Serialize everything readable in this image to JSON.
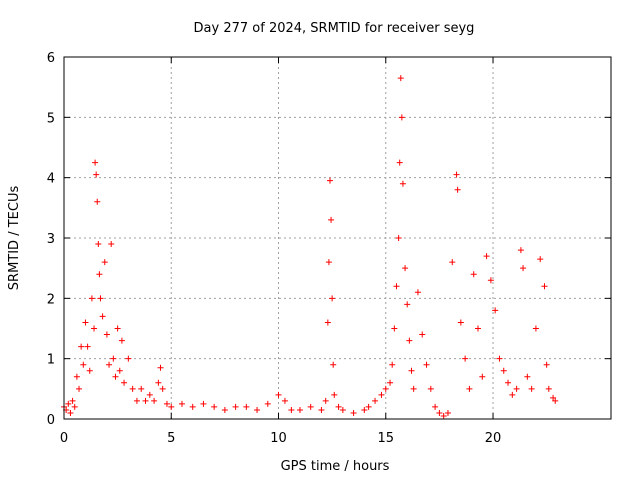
{
  "chart_data": {
    "type": "scatter",
    "title": "Day 277 of 2024, SRMTID for receiver seyg",
    "xlabel": "GPS time / hours",
    "ylabel": "SRMTID / TECUs",
    "xlim": [
      0,
      25.5
    ],
    "ylim": [
      0,
      6
    ],
    "xticks": [
      0,
      5,
      10,
      15,
      20
    ],
    "yticks": [
      0,
      1,
      2,
      3,
      4,
      5,
      6
    ],
    "grid": true,
    "marker": "+",
    "color": "#ff0000",
    "series": [
      {
        "name": "SRMTID",
        "points": [
          [
            0.0,
            0.2
          ],
          [
            0.1,
            0.15
          ],
          [
            0.2,
            0.25
          ],
          [
            0.3,
            0.1
          ],
          [
            0.4,
            0.3
          ],
          [
            0.5,
            0.2
          ],
          [
            0.6,
            0.7
          ],
          [
            0.7,
            0.5
          ],
          [
            0.8,
            1.2
          ],
          [
            0.9,
            0.9
          ],
          [
            1.0,
            1.6
          ],
          [
            1.1,
            1.2
          ],
          [
            1.2,
            0.8
          ],
          [
            1.3,
            2.0
          ],
          [
            1.4,
            1.5
          ],
          [
            1.45,
            4.25
          ],
          [
            1.5,
            4.05
          ],
          [
            1.55,
            3.6
          ],
          [
            1.6,
            2.9
          ],
          [
            1.65,
            2.4
          ],
          [
            1.7,
            2.0
          ],
          [
            1.8,
            1.7
          ],
          [
            1.9,
            2.6
          ],
          [
            2.0,
            1.4
          ],
          [
            2.1,
            0.9
          ],
          [
            2.2,
            2.9
          ],
          [
            2.3,
            1.0
          ],
          [
            2.4,
            0.7
          ],
          [
            2.5,
            1.5
          ],
          [
            2.6,
            0.8
          ],
          [
            2.7,
            1.3
          ],
          [
            2.8,
            0.6
          ],
          [
            3.0,
            1.0
          ],
          [
            3.2,
            0.5
          ],
          [
            3.4,
            0.3
          ],
          [
            3.6,
            0.5
          ],
          [
            3.8,
            0.3
          ],
          [
            4.0,
            0.4
          ],
          [
            4.2,
            0.3
          ],
          [
            4.4,
            0.6
          ],
          [
            4.5,
            0.85
          ],
          [
            4.6,
            0.5
          ],
          [
            4.8,
            0.25
          ],
          [
            5.0,
            0.2
          ],
          [
            5.5,
            0.25
          ],
          [
            6.0,
            0.2
          ],
          [
            6.5,
            0.25
          ],
          [
            7.0,
            0.2
          ],
          [
            7.5,
            0.15
          ],
          [
            8.0,
            0.2
          ],
          [
            8.5,
            0.2
          ],
          [
            9.0,
            0.15
          ],
          [
            9.5,
            0.25
          ],
          [
            10.0,
            0.4
          ],
          [
            10.3,
            0.3
          ],
          [
            10.6,
            0.15
          ],
          [
            11.0,
            0.15
          ],
          [
            11.5,
            0.2
          ],
          [
            12.0,
            0.15
          ],
          [
            12.2,
            0.3
          ],
          [
            12.3,
            1.6
          ],
          [
            12.35,
            2.6
          ],
          [
            12.4,
            3.95
          ],
          [
            12.45,
            3.3
          ],
          [
            12.5,
            2.0
          ],
          [
            12.55,
            0.9
          ],
          [
            12.6,
            0.4
          ],
          [
            12.8,
            0.2
          ],
          [
            13.0,
            0.15
          ],
          [
            13.5,
            0.1
          ],
          [
            14.0,
            0.15
          ],
          [
            14.2,
            0.2
          ],
          [
            14.5,
            0.3
          ],
          [
            14.8,
            0.4
          ],
          [
            15.0,
            0.5
          ],
          [
            15.2,
            0.6
          ],
          [
            15.3,
            0.9
          ],
          [
            15.4,
            1.5
          ],
          [
            15.5,
            2.2
          ],
          [
            15.6,
            3.0
          ],
          [
            15.65,
            4.25
          ],
          [
            15.7,
            5.65
          ],
          [
            15.75,
            5.0
          ],
          [
            15.8,
            3.9
          ],
          [
            15.9,
            2.5
          ],
          [
            16.0,
            1.9
          ],
          [
            16.1,
            1.3
          ],
          [
            16.2,
            0.8
          ],
          [
            16.3,
            0.5
          ],
          [
            16.5,
            2.1
          ],
          [
            16.7,
            1.4
          ],
          [
            16.9,
            0.9
          ],
          [
            17.1,
            0.5
          ],
          [
            17.3,
            0.2
          ],
          [
            17.5,
            0.1
          ],
          [
            17.7,
            0.05
          ],
          [
            17.9,
            0.1
          ],
          [
            18.1,
            2.6
          ],
          [
            18.3,
            4.05
          ],
          [
            18.35,
            3.8
          ],
          [
            18.5,
            1.6
          ],
          [
            18.7,
            1.0
          ],
          [
            18.9,
            0.5
          ],
          [
            19.1,
            2.4
          ],
          [
            19.3,
            1.5
          ],
          [
            19.5,
            0.7
          ],
          [
            19.7,
            2.7
          ],
          [
            19.9,
            2.3
          ],
          [
            20.1,
            1.8
          ],
          [
            20.3,
            1.0
          ],
          [
            20.5,
            0.8
          ],
          [
            20.7,
            0.6
          ],
          [
            20.9,
            0.4
          ],
          [
            21.1,
            0.5
          ],
          [
            21.3,
            2.8
          ],
          [
            21.4,
            2.5
          ],
          [
            21.6,
            0.7
          ],
          [
            21.8,
            0.5
          ],
          [
            22.0,
            1.5
          ],
          [
            22.2,
            2.65
          ],
          [
            22.4,
            2.2
          ],
          [
            22.5,
            0.9
          ],
          [
            22.6,
            0.5
          ],
          [
            22.8,
            0.35
          ],
          [
            22.9,
            0.3
          ]
        ]
      }
    ]
  }
}
